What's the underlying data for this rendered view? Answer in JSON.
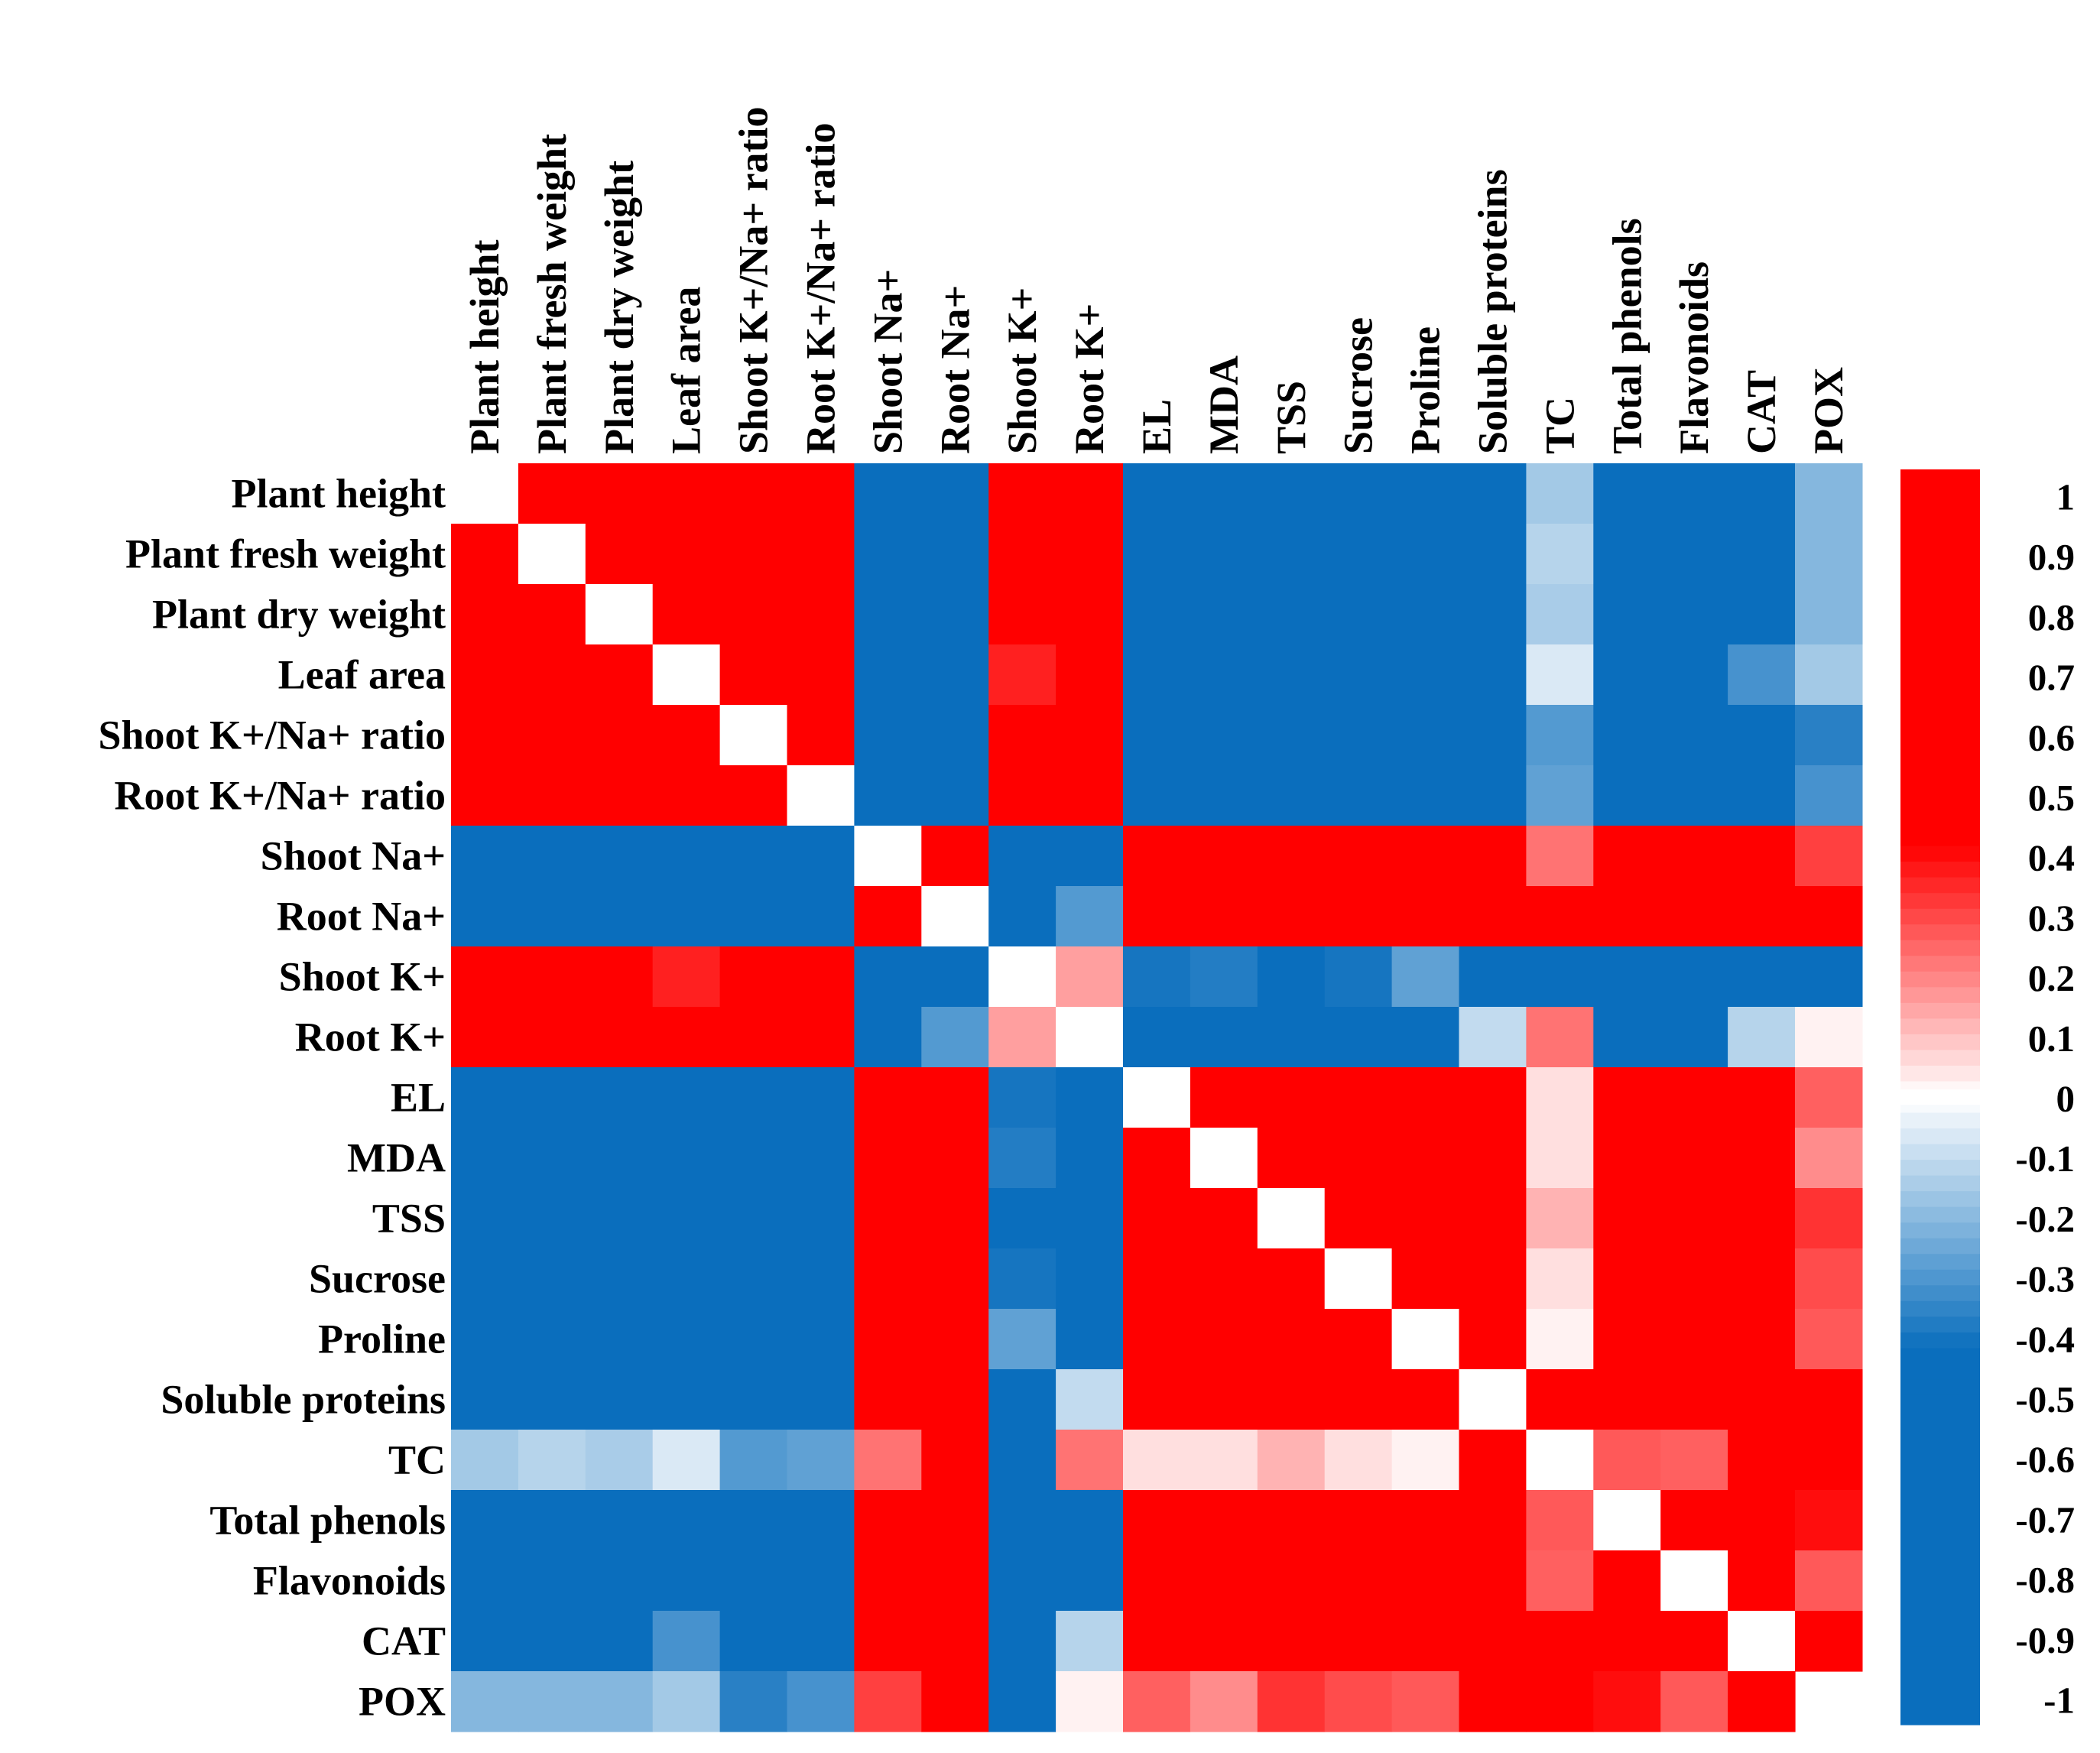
{
  "chart_data": {
    "type": "heatmap",
    "title": "",
    "variables": [
      "Plant height",
      "Plant fresh weight",
      "Plant dry weight",
      "Leaf area",
      "Shoot K+/Na+ ratio",
      "Root K+/Na+ ratio",
      "Shoot Na+",
      "Root Na+",
      "Shoot K+",
      "Root K+",
      "EL",
      "MDA",
      "TSS",
      "Sucrose",
      "Proline",
      "Soluble proteins",
      "TC",
      "Total phenols",
      "Flavonoids",
      "CAT",
      "POX"
    ],
    "matrix": [
      [
        1,
        0.98,
        0.97,
        0.95,
        0.94,
        0.95,
        -0.9,
        -0.72,
        0.55,
        0.9,
        -0.88,
        -0.86,
        -0.78,
        -0.82,
        -0.72,
        -0.6,
        -0.15,
        -0.88,
        -0.88,
        -0.45,
        -0.2
      ],
      [
        0.98,
        1,
        0.97,
        0.94,
        0.93,
        0.95,
        -0.9,
        -0.72,
        0.52,
        0.9,
        -0.88,
        -0.86,
        -0.79,
        -0.82,
        -0.74,
        -0.62,
        -0.12,
        -0.88,
        -0.88,
        -0.45,
        -0.2
      ],
      [
        0.97,
        0.97,
        1,
        0.93,
        0.93,
        0.94,
        -0.88,
        -0.7,
        0.52,
        0.9,
        -0.88,
        -0.86,
        -0.79,
        -0.82,
        -0.74,
        -0.62,
        -0.14,
        -0.86,
        -0.86,
        -0.43,
        -0.2
      ],
      [
        0.95,
        0.94,
        0.93,
        1,
        0.92,
        0.88,
        -0.8,
        -0.55,
        0.35,
        0.85,
        -0.8,
        -0.78,
        -0.62,
        -0.78,
        -0.6,
        -0.48,
        -0.06,
        -0.8,
        -0.76,
        -0.3,
        -0.15
      ],
      [
        0.94,
        0.93,
        0.93,
        0.92,
        1,
        0.92,
        -0.84,
        -0.68,
        0.58,
        0.82,
        -0.82,
        -0.8,
        -0.68,
        -0.78,
        -0.6,
        -0.62,
        -0.28,
        -0.86,
        -0.8,
        -0.5,
        -0.35
      ],
      [
        0.95,
        0.95,
        0.94,
        0.88,
        0.92,
        1,
        -0.88,
        -0.72,
        0.6,
        0.85,
        -0.86,
        -0.86,
        -0.78,
        -0.82,
        -0.7,
        -0.62,
        -0.26,
        -0.88,
        -0.86,
        -0.52,
        -0.3
      ],
      [
        -0.9,
        -0.9,
        -0.88,
        -0.8,
        -0.84,
        -0.88,
        1,
        0.75,
        -0.45,
        -0.72,
        0.96,
        0.93,
        0.88,
        0.93,
        0.82,
        0.6,
        0.22,
        0.93,
        0.93,
        0.5,
        0.3
      ],
      [
        -0.72,
        -0.72,
        -0.7,
        -0.55,
        -0.68,
        -0.72,
        0.75,
        1,
        -0.78,
        -0.28,
        0.65,
        0.65,
        0.68,
        0.62,
        0.58,
        0.93,
        0.72,
        0.78,
        0.76,
        0.85,
        0.65
      ],
      [
        0.55,
        0.52,
        0.52,
        0.35,
        0.58,
        0.6,
        -0.45,
        -0.78,
        1,
        0.15,
        -0.38,
        -0.36,
        -0.45,
        -0.38,
        -0.26,
        -0.85,
        -0.68,
        -0.52,
        -0.48,
        -0.8,
        -0.62
      ],
      [
        0.9,
        0.9,
        0.9,
        0.85,
        0.82,
        0.85,
        -0.72,
        -0.28,
        0.15,
        1,
        -0.82,
        -0.84,
        -0.76,
        -0.8,
        -0.76,
        -0.1,
        0.22,
        -0.72,
        -0.78,
        -0.12,
        0.02
      ],
      [
        -0.88,
        -0.88,
        -0.88,
        -0.8,
        -0.82,
        -0.86,
        0.96,
        0.65,
        -0.38,
        -0.82,
        1,
        0.96,
        0.94,
        0.97,
        0.88,
        0.45,
        0.05,
        0.95,
        0.95,
        0.45,
        0.25
      ],
      [
        -0.86,
        -0.86,
        -0.86,
        -0.78,
        -0.8,
        -0.86,
        0.93,
        0.65,
        -0.36,
        -0.84,
        0.96,
        1,
        0.94,
        0.95,
        0.9,
        0.48,
        0.05,
        0.93,
        0.96,
        0.42,
        0.18
      ],
      [
        -0.78,
        -0.79,
        -0.79,
        -0.62,
        -0.68,
        -0.78,
        0.88,
        0.68,
        -0.45,
        -0.76,
        0.94,
        0.94,
        1,
        0.94,
        0.96,
        0.56,
        0.12,
        0.92,
        0.93,
        0.6,
        0.32
      ],
      [
        -0.82,
        -0.82,
        -0.82,
        -0.78,
        -0.78,
        -0.82,
        0.93,
        0.62,
        -0.38,
        -0.8,
        0.97,
        0.95,
        0.94,
        1,
        0.92,
        0.48,
        0.05,
        0.94,
        0.93,
        0.45,
        0.28
      ],
      [
        -0.72,
        -0.74,
        -0.74,
        -0.6,
        -0.6,
        -0.7,
        0.82,
        0.58,
        -0.26,
        -0.76,
        0.88,
        0.9,
        0.96,
        0.92,
        1,
        0.42,
        0.02,
        0.8,
        0.9,
        0.45,
        0.26
      ],
      [
        -0.6,
        -0.62,
        -0.62,
        -0.48,
        -0.62,
        -0.62,
        0.6,
        0.93,
        -0.85,
        -0.1,
        0.45,
        0.48,
        0.56,
        0.48,
        0.42,
        1,
        0.75,
        0.65,
        0.65,
        0.88,
        0.58
      ],
      [
        -0.15,
        -0.12,
        -0.14,
        -0.06,
        -0.28,
        -0.26,
        0.22,
        0.72,
        -0.68,
        0.22,
        0.05,
        0.05,
        0.12,
        0.05,
        0.02,
        0.75,
        1,
        0.26,
        0.25,
        0.65,
        0.62
      ],
      [
        -0.88,
        -0.88,
        -0.86,
        -0.8,
        -0.86,
        -0.88,
        0.93,
        0.78,
        -0.52,
        -0.72,
        0.95,
        0.93,
        0.92,
        0.94,
        0.8,
        0.65,
        0.26,
        1,
        0.92,
        0.58,
        0.38
      ],
      [
        -0.88,
        -0.88,
        -0.86,
        -0.76,
        -0.8,
        -0.86,
        0.93,
        0.76,
        -0.48,
        -0.78,
        0.95,
        0.96,
        0.93,
        0.93,
        0.9,
        0.65,
        0.25,
        0.92,
        1,
        0.5,
        0.26
      ],
      [
        -0.45,
        -0.45,
        -0.43,
        -0.3,
        -0.5,
        -0.52,
        0.5,
        0.85,
        -0.8,
        -0.12,
        0.45,
        0.42,
        0.6,
        0.45,
        0.45,
        0.88,
        0.65,
        0.58,
        0.5,
        1,
        0.72
      ],
      [
        -0.2,
        -0.2,
        -0.2,
        -0.15,
        -0.35,
        -0.3,
        0.3,
        0.65,
        -0.62,
        0.02,
        0.25,
        0.18,
        0.32,
        0.28,
        0.26,
        0.58,
        0.62,
        0.38,
        0.26,
        0.72,
        1
      ]
    ],
    "diagonal_blank": true,
    "blank_cell": {
      "row": "POX",
      "column": "POX"
    },
    "color_scale": {
      "min": -1,
      "max": 1,
      "negative_color": "#0a6ebd",
      "positive_color": "#ff0000",
      "zero_color": "#ffffff",
      "ticks": [
        "1",
        "0.9",
        "0.8",
        "0.7",
        "0.6",
        "0.5",
        "0.4",
        "0.3",
        "0.2",
        "0.1",
        "0",
        "-0.1",
        "-0.2",
        "-0.3",
        "-0.4",
        "-0.5",
        "-0.6",
        "-0.7",
        "-0.8",
        "-0.9",
        "-1"
      ],
      "placement": "right"
    }
  }
}
